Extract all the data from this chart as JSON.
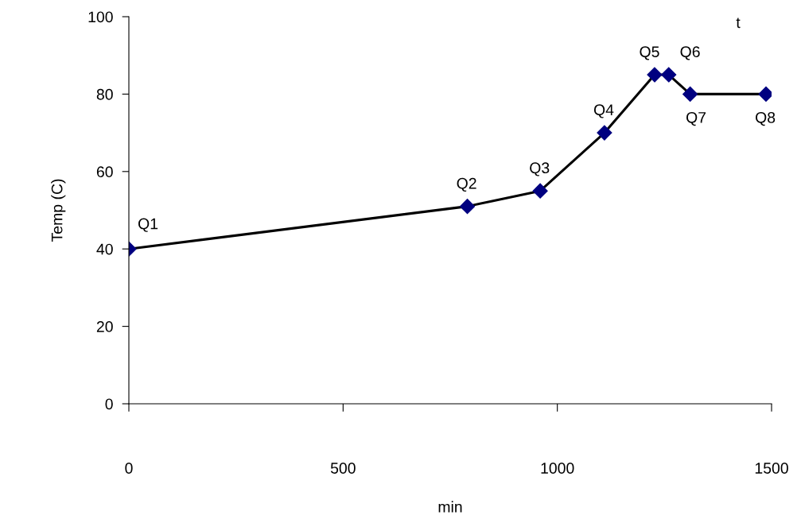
{
  "chart_data": {
    "type": "line",
    "xlabel": "min",
    "ylabel": "Temp (C)",
    "x": [
      0,
      790,
      960,
      1110,
      1227,
      1260,
      1310,
      1487
    ],
    "series": [
      {
        "color": "#000080",
        "values": [
          40,
          51,
          55,
          70,
          85,
          85,
          80,
          80
        ]
      }
    ],
    "xlim": [
      0,
      1500
    ],
    "xticks": [
      0,
      500,
      1000,
      1500
    ],
    "ylim": [
      0,
      100
    ],
    "yticks": [
      0,
      20,
      40,
      60,
      80,
      100
    ],
    "marker": "diamond",
    "line_style": "solid",
    "grid": false,
    "legend": false,
    "annotations": [
      {
        "text": "Q1",
        "x": 0,
        "y": 40
      },
      {
        "text": "Q2",
        "x": 790,
        "y": 51
      },
      {
        "text": "Q3",
        "x": 960,
        "y": 55
      },
      {
        "text": "Q4",
        "x": 1110,
        "y": 70
      },
      {
        "text": "Q5",
        "x": 1227,
        "y": 85
      },
      {
        "text": "Q6",
        "x": 1260,
        "y": 85
      },
      {
        "text": "Q7",
        "x": 1310,
        "y": 80
      },
      {
        "text": "Q8",
        "x": 1487,
        "y": 80
      },
      "t"
    ]
  }
}
